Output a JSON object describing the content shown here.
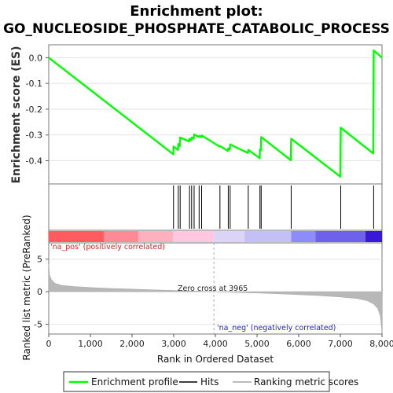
{
  "title_line1": "Enrichment plot:",
  "title_line2": "GO_NUCLEOSIDE_PHOSPHATE_CATABOLIC_PROCESS",
  "chart_data": [
    {
      "type": "line",
      "ylabel": "Enrichment score (ES)",
      "xlim": [
        0,
        8000
      ],
      "ylim": [
        -0.49,
        0.05
      ],
      "y_ticks": [
        0.0,
        -0.1,
        -0.2,
        -0.3,
        -0.4
      ],
      "y_tick_labels": [
        "0.0",
        "-0.1",
        "-0.2",
        "-0.3",
        "-0.4"
      ],
      "grid": true,
      "series": [
        {
          "name": "Enrichment profile",
          "color": "#00ff00",
          "points": [
            [
              0,
              0.0
            ],
            [
              2990,
              -0.375
            ],
            [
              2995,
              -0.345
            ],
            [
              3100,
              -0.358
            ],
            [
              3110,
              -0.335
            ],
            [
              3145,
              -0.343
            ],
            [
              3155,
              -0.31
            ],
            [
              3370,
              -0.325
            ],
            [
              3380,
              -0.315
            ],
            [
              3420,
              -0.32
            ],
            [
              3430,
              -0.31
            ],
            [
              3480,
              -0.313
            ],
            [
              3490,
              -0.298
            ],
            [
              3600,
              -0.308
            ],
            [
              3610,
              -0.304
            ],
            [
              3660,
              -0.308
            ],
            [
              3670,
              -0.302
            ],
            [
              4100,
              -0.345
            ],
            [
              4110,
              -0.343
            ],
            [
              4300,
              -0.362
            ],
            [
              4310,
              -0.352
            ],
            [
              4345,
              -0.356
            ],
            [
              4355,
              -0.337
            ],
            [
              4780,
              -0.37
            ],
            [
              4790,
              -0.358
            ],
            [
              5060,
              -0.39
            ],
            [
              5070,
              -0.357
            ],
            [
              5090,
              -0.36
            ],
            [
              5100,
              -0.308
            ],
            [
              5810,
              -0.398
            ],
            [
              5820,
              -0.315
            ],
            [
              7000,
              -0.462
            ],
            [
              7010,
              -0.272
            ],
            [
              7790,
              -0.372
            ],
            [
              7800,
              0.028
            ],
            [
              8000,
              0.0
            ]
          ]
        }
      ]
    },
    {
      "type": "hits",
      "name": "Hits",
      "xlim": [
        0,
        8000
      ],
      "hits": [
        2995,
        3110,
        3155,
        3380,
        3430,
        3490,
        3610,
        3670,
        4110,
        4310,
        4355,
        4790,
        5070,
        5100,
        5820,
        7010,
        7800
      ]
    },
    {
      "type": "heatmap",
      "xlim": [
        0,
        8000
      ],
      "segments": [
        {
          "from": 0,
          "to": 1320,
          "color": "#ff5c62"
        },
        {
          "from": 1320,
          "to": 2150,
          "color": "#ff8a96"
        },
        {
          "from": 2150,
          "to": 2980,
          "color": "#ffb0be"
        },
        {
          "from": 2980,
          "to": 3965,
          "color": "#ffc8e0"
        },
        {
          "from": 3965,
          "to": 4700,
          "color": "#dcd4f6"
        },
        {
          "from": 4700,
          "to": 5820,
          "color": "#c4c0f6"
        },
        {
          "from": 5820,
          "to": 6400,
          "color": "#8e8cfa"
        },
        {
          "from": 6400,
          "to": 7600,
          "color": "#6e62ec"
        },
        {
          "from": 7600,
          "to": 8000,
          "color": "#3a18d8"
        }
      ]
    },
    {
      "type": "area",
      "ylabel": "Ranked list metric (PreRanked)",
      "xlabel": "Rank in Ordered Dataset",
      "xlim": [
        0,
        8000
      ],
      "ylim": [
        -6.5,
        7.5
      ],
      "y_ticks": [
        5,
        0,
        -5
      ],
      "y_tick_labels": [
        "5",
        "0",
        "-5"
      ],
      "x_ticks": [
        0,
        1000,
        2000,
        3000,
        4000,
        5000,
        6000,
        7000,
        8000
      ],
      "x_tick_labels": [
        "0",
        "1,000",
        "2,000",
        "3,000",
        "4,000",
        "5,000",
        "6,000",
        "7,000",
        "8,000"
      ],
      "zero_cross": 3965,
      "series": [
        {
          "name": "Ranking metric scores",
          "color": "#b8b8b8",
          "points": [
            [
              0,
              4.2
            ],
            [
              20,
              2.6
            ],
            [
              60,
              1.9
            ],
            [
              150,
              1.3
            ],
            [
              300,
              1.0
            ],
            [
              600,
              0.8
            ],
            [
              1000,
              0.65
            ],
            [
              1500,
              0.5
            ],
            [
              2000,
              0.4
            ],
            [
              2500,
              0.3
            ],
            [
              3000,
              0.2
            ],
            [
              3500,
              0.1
            ],
            [
              3965,
              0.0
            ],
            [
              4500,
              -0.1
            ],
            [
              5000,
              -0.2
            ],
            [
              5500,
              -0.32
            ],
            [
              6000,
              -0.45
            ],
            [
              6500,
              -0.6
            ],
            [
              7000,
              -0.82
            ],
            [
              7400,
              -1.05
            ],
            [
              7650,
              -1.4
            ],
            [
              7800,
              -1.9
            ],
            [
              7900,
              -2.6
            ],
            [
              7960,
              -3.8
            ],
            [
              7990,
              -5.6
            ],
            [
              8000,
              -6.3
            ]
          ]
        }
      ],
      "annotations": [
        "'na_pos' (positively correlated)",
        "Zero cross at 3965",
        "'na_neg' (negatively correlated)"
      ]
    }
  ],
  "legend": {
    "items": [
      {
        "label": "Enrichment profile",
        "color": "#00ff00"
      },
      {
        "label": "Hits",
        "color": "#000000"
      },
      {
        "label": "Ranking metric scores",
        "color": "#b8b8b8"
      }
    ]
  }
}
